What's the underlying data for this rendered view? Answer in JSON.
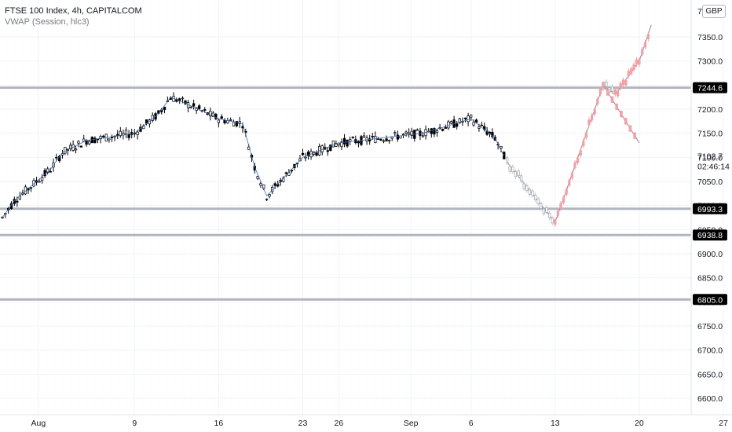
{
  "header": {
    "title": "FTSE 100 Index, 4h, CAPITALCOM",
    "indicator": "VWAP (Session, hlc3)",
    "currency": "GBP",
    "top_tick_fragment": "7…"
  },
  "price_readout": {
    "price": "7102.7",
    "countdown": "02:46:14"
  },
  "colors": {
    "candle_body": "#000000",
    "vwap_line": "#3d6fb6",
    "level_line": "#b2b5be",
    "projection_bull": "#f4a0a7",
    "projection_bear": "#c8cbd1",
    "grid": "#f0f3fa"
  },
  "chart_data": {
    "type": "candlestick",
    "symbol": "FTSE 100 Index",
    "interval": "4h",
    "y_axis": {
      "ticks": [
        6600.0,
        6650.0,
        6700.0,
        6750.0,
        6800.0,
        6850.0,
        6900.0,
        6950.0,
        7000.0,
        7050.0,
        7100.0,
        7150.0,
        7200.0,
        7250.0,
        7300.0,
        7350.0
      ],
      "range": [
        6590,
        7410
      ]
    },
    "x_axis": {
      "labels": [
        "Aug",
        "9",
        "16",
        "23",
        "26",
        "Sep",
        "6",
        "13",
        "20",
        "27"
      ],
      "start": "2021-07-29"
    },
    "horizontal_levels": [
      7244.6,
      6993.3,
      6938.8,
      6805.0
    ],
    "price_trajectory": [
      {
        "date": "2021-07-29",
        "price": 6975
      },
      {
        "date": "2021-07-30",
        "price": 7010
      },
      {
        "date": "2021-08-02",
        "price": 7075
      },
      {
        "date": "2021-08-03",
        "price": 7110
      },
      {
        "date": "2021-08-05",
        "price": 7135
      },
      {
        "date": "2021-08-09",
        "price": 7150
      },
      {
        "date": "2021-08-11",
        "price": 7190
      },
      {
        "date": "2021-08-12",
        "price": 7225
      },
      {
        "date": "2021-08-13",
        "price": 7215
      },
      {
        "date": "2021-08-16",
        "price": 7180
      },
      {
        "date": "2021-08-18",
        "price": 7170
      },
      {
        "date": "2021-08-19",
        "price": 7080
      },
      {
        "date": "2021-08-20",
        "price": 7020
      },
      {
        "date": "2021-08-23",
        "price": 7100
      },
      {
        "date": "2021-08-26",
        "price": 7130
      },
      {
        "date": "2021-09-02",
        "price": 7150
      },
      {
        "date": "2021-09-06",
        "price": 7180
      },
      {
        "date": "2021-09-08",
        "price": 7140
      },
      {
        "date": "2021-09-09",
        "price": 7090
      }
    ],
    "projection": [
      {
        "date": "2021-09-09",
        "price": 7090
      },
      {
        "date": "2021-09-13",
        "price": 6965
      },
      {
        "date": "2021-09-17",
        "price": 7250
      },
      {
        "date": "2021-09-18",
        "price": 7230
      },
      {
        "date": "2021-09-20",
        "price": 7300
      },
      {
        "date": "2021-09-21",
        "price": 7375
      }
    ],
    "bear_projection": [
      {
        "date": "2021-09-17",
        "price": 7250
      },
      {
        "date": "2021-09-20",
        "price": 7130
      }
    ]
  }
}
